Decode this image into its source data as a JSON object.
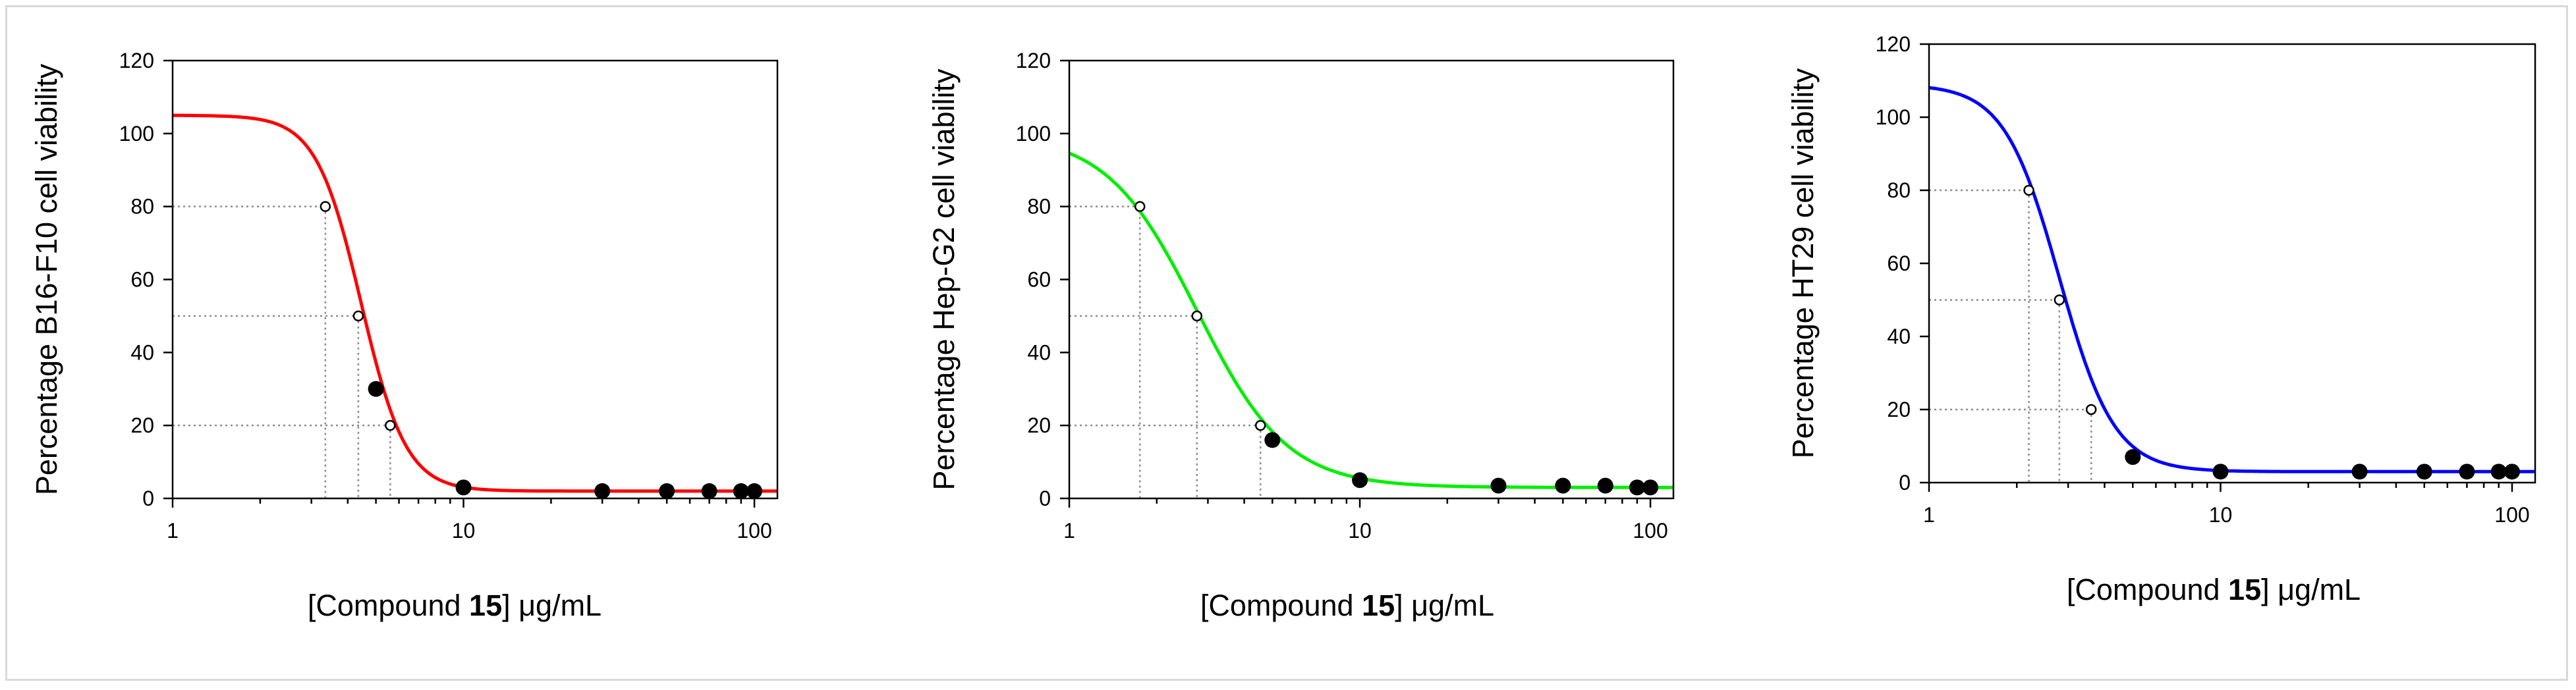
{
  "chart_data": [
    {
      "type": "line",
      "ylabel": "Percentage B16-F10 cell viability",
      "xlabel_prefix": "[Compound ",
      "xlabel_bold": "15",
      "xlabel_suffix": "] μg/mL",
      "xscale": "log",
      "xlim": [
        1,
        120
      ],
      "ylim": [
        0,
        120
      ],
      "yticks": [
        0,
        20,
        40,
        60,
        80,
        100,
        120
      ],
      "xticks": [
        1,
        10,
        100
      ],
      "color": "#ff0000",
      "curve": {
        "bottom": 2,
        "top": 105,
        "ec50": 4.45,
        "hill": 5.6
      },
      "measured": [
        {
          "x": 5,
          "y": 30
        },
        {
          "x": 10,
          "y": 3
        },
        {
          "x": 30,
          "y": 2
        },
        {
          "x": 50,
          "y": 2
        },
        {
          "x": 70,
          "y": 2
        },
        {
          "x": 90,
          "y": 2
        },
        {
          "x": 100,
          "y": 2
        }
      ],
      "interpolated": [
        {
          "x": 3.35,
          "y": 80
        },
        {
          "x": 4.35,
          "y": 50
        },
        {
          "x": 5.6,
          "y": 20
        }
      ],
      "grid": false
    },
    {
      "type": "line",
      "ylabel": "Percentage Hep-G2 cell viability",
      "xlabel_prefix": "[Compound ",
      "xlabel_bold": "15",
      "xlabel_suffix": "] μg/mL",
      "xscale": "log",
      "xlim": [
        1,
        120
      ],
      "ylim": [
        0,
        120
      ],
      "yticks": [
        0,
        20,
        40,
        60,
        80,
        100,
        120
      ],
      "xticks": [
        1,
        10,
        100
      ],
      "color": "#00ee00",
      "curve": {
        "bottom": 3,
        "top": 100,
        "ec50": 2.75,
        "hill": 2.8
      },
      "measured": [
        {
          "x": 5,
          "y": 16
        },
        {
          "x": 10,
          "y": 5
        },
        {
          "x": 30,
          "y": 3.5
        },
        {
          "x": 50,
          "y": 3.5
        },
        {
          "x": 70,
          "y": 3.5
        },
        {
          "x": 90,
          "y": 3
        },
        {
          "x": 100,
          "y": 3
        }
      ],
      "interpolated": [
        {
          "x": 1.75,
          "y": 80
        },
        {
          "x": 2.75,
          "y": 50
        },
        {
          "x": 4.55,
          "y": 20
        }
      ],
      "grid": false
    },
    {
      "type": "line",
      "ylabel": "Percentage HT29 cell viability",
      "xlabel_prefix": "[Compound ",
      "xlabel_bold": "15",
      "xlabel_suffix": "] μg/mL",
      "xscale": "log",
      "xlim": [
        1,
        120
      ],
      "ylim": [
        0,
        120
      ],
      "yticks": [
        0,
        20,
        40,
        60,
        80,
        100,
        120
      ],
      "xticks": [
        1,
        10,
        100
      ],
      "color": "#0000ff",
      "curve": {
        "bottom": 3,
        "top": 109,
        "ec50": 2.8,
        "hill": 4.6
      },
      "measured": [
        {
          "x": 5,
          "y": 7
        },
        {
          "x": 10,
          "y": 3
        },
        {
          "x": 30,
          "y": 3
        },
        {
          "x": 50,
          "y": 3
        },
        {
          "x": 70,
          "y": 3
        },
        {
          "x": 90,
          "y": 3
        },
        {
          "x": 100,
          "y": 3
        }
      ],
      "interpolated": [
        {
          "x": 2.2,
          "y": 80
        },
        {
          "x": 2.8,
          "y": 50
        },
        {
          "x": 3.6,
          "y": 20
        }
      ],
      "grid": false
    }
  ]
}
